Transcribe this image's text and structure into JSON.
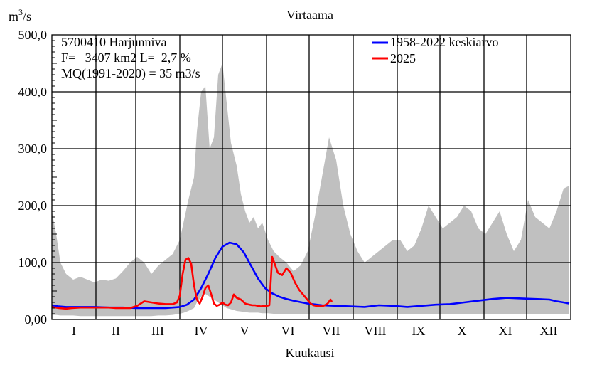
{
  "chart_data": {
    "type": "line",
    "title": "Virtaama",
    "ylabel_base": "m",
    "ylabel_exp": "3",
    "ylabel_tail": "/s",
    "xlabel": "Kuukausi",
    "ylim": [
      0,
      500
    ],
    "yticks": [
      "0,00",
      "100,0",
      "200,0",
      "300,0",
      "400,0",
      "500,0"
    ],
    "months": [
      "I",
      "II",
      "III",
      "IV",
      "V",
      "VI",
      "VII",
      "VIII",
      "IX",
      "X",
      "XI",
      "XII"
    ],
    "grid": true,
    "info": [
      "5700410 Harjunniva",
      "F=   3407 km2 L=  2,7 %",
      "MQ(1991-2020) = 35 m3/s"
    ],
    "legend_position": "top-right",
    "colors": {
      "mean": "#0000ff",
      "current": "#ff0000",
      "range": "#c0c0c0"
    },
    "range_band": {
      "x_day": [
        0,
        3,
        6,
        10,
        15,
        20,
        25,
        30,
        35,
        40,
        45,
        50,
        55,
        60,
        65,
        70,
        75,
        80,
        85,
        90,
        93,
        96,
        100,
        102,
        105,
        108,
        111,
        114,
        117,
        120,
        123,
        126,
        130,
        133,
        136,
        139,
        142,
        145,
        148,
        152,
        156,
        160,
        165,
        170,
        175,
        180,
        185,
        190,
        195,
        200,
        205,
        210,
        215,
        220,
        225,
        230,
        235,
        240,
        245,
        250,
        255,
        260,
        265,
        270,
        275,
        280,
        285,
        290,
        295,
        300,
        305,
        310,
        315,
        320,
        325,
        330,
        335,
        340,
        345,
        350,
        355,
        360,
        364
      ],
      "upper": [
        190,
        150,
        100,
        80,
        70,
        75,
        70,
        65,
        70,
        68,
        72,
        85,
        100,
        110,
        100,
        80,
        95,
        105,
        115,
        140,
        175,
        210,
        250,
        330,
        400,
        410,
        300,
        320,
        430,
        450,
        380,
        310,
        270,
        220,
        190,
        170,
        180,
        160,
        170,
        140,
        120,
        110,
        100,
        85,
        95,
        120,
        180,
        250,
        320,
        280,
        200,
        150,
        120,
        100,
        110,
        120,
        130,
        140,
        140,
        120,
        130,
        160,
        200,
        180,
        160,
        170,
        180,
        200,
        190,
        160,
        150,
        170,
        190,
        150,
        120,
        140,
        210,
        180,
        170,
        160,
        190,
        230,
        235
      ],
      "lower": [
        8,
        8,
        7,
        7,
        7,
        6,
        6,
        6,
        6,
        6,
        6,
        6,
        6,
        6,
        6,
        6,
        7,
        7,
        8,
        10,
        12,
        15,
        20,
        30,
        40,
        45,
        40,
        35,
        30,
        25,
        20,
        18,
        15,
        14,
        13,
        12,
        12,
        12,
        11,
        11,
        10,
        10,
        9,
        9,
        9,
        9,
        9,
        9,
        9,
        9,
        9,
        9,
        9,
        9,
        9,
        9,
        9,
        9,
        10,
        10,
        10,
        10,
        10,
        10,
        10,
        10,
        10,
        10,
        10,
        10,
        10,
        10,
        10,
        10,
        10,
        10,
        10,
        10,
        10,
        10,
        10,
        10,
        10
      ]
    },
    "series": [
      {
        "name": "1958-2022 keskiarvo",
        "x_day": [
          0,
          5,
          10,
          20,
          30,
          40,
          50,
          60,
          70,
          80,
          85,
          90,
          95,
          100,
          105,
          110,
          115,
          120,
          125,
          130,
          135,
          140,
          145,
          150,
          155,
          160,
          165,
          170,
          180,
          190,
          200,
          210,
          220,
          230,
          240,
          250,
          260,
          270,
          280,
          290,
          300,
          310,
          320,
          330,
          340,
          350,
          355,
          360,
          364
        ],
        "values": [
          25,
          23,
          22,
          22,
          22,
          21,
          21,
          20,
          20,
          20,
          21,
          22,
          26,
          35,
          55,
          80,
          108,
          128,
          135,
          132,
          118,
          95,
          72,
          55,
          46,
          40,
          36,
          33,
          28,
          25,
          24,
          23,
          22,
          25,
          24,
          22,
          24,
          26,
          27,
          30,
          33,
          36,
          38,
          37,
          36,
          35,
          32,
          30,
          28
        ]
      },
      {
        "name": "2025",
        "x_day": [
          0,
          5,
          10,
          14,
          20,
          25,
          30,
          35,
          40,
          45,
          50,
          55,
          60,
          65,
          70,
          75,
          80,
          85,
          88,
          90,
          92,
          94,
          96,
          98,
          100,
          102,
          104,
          106,
          108,
          110,
          112,
          114,
          116,
          118,
          120,
          122,
          124,
          126,
          128,
          130,
          133,
          136,
          139,
          141,
          143,
          145,
          147,
          149,
          151,
          153,
          155,
          157,
          159,
          162,
          165,
          168,
          171,
          174,
          176,
          178,
          180,
          182,
          184,
          186,
          188,
          190,
          192,
          194,
          196,
          197
        ],
        "values": [
          22,
          20,
          19,
          20,
          21,
          21,
          21,
          21,
          21,
          20,
          20,
          20,
          24,
          32,
          30,
          28,
          27,
          27,
          30,
          42,
          80,
          105,
          108,
          98,
          60,
          35,
          28,
          40,
          55,
          60,
          45,
          28,
          24,
          26,
          30,
          26,
          25,
          30,
          44,
          38,
          35,
          28,
          26,
          25,
          25,
          24,
          23,
          24,
          24,
          25,
          110,
          96,
          82,
          78,
          90,
          82,
          65,
          52,
          46,
          40,
          34,
          28,
          25,
          24,
          23,
          23,
          25,
          28,
          35,
          31
        ]
      }
    ]
  }
}
